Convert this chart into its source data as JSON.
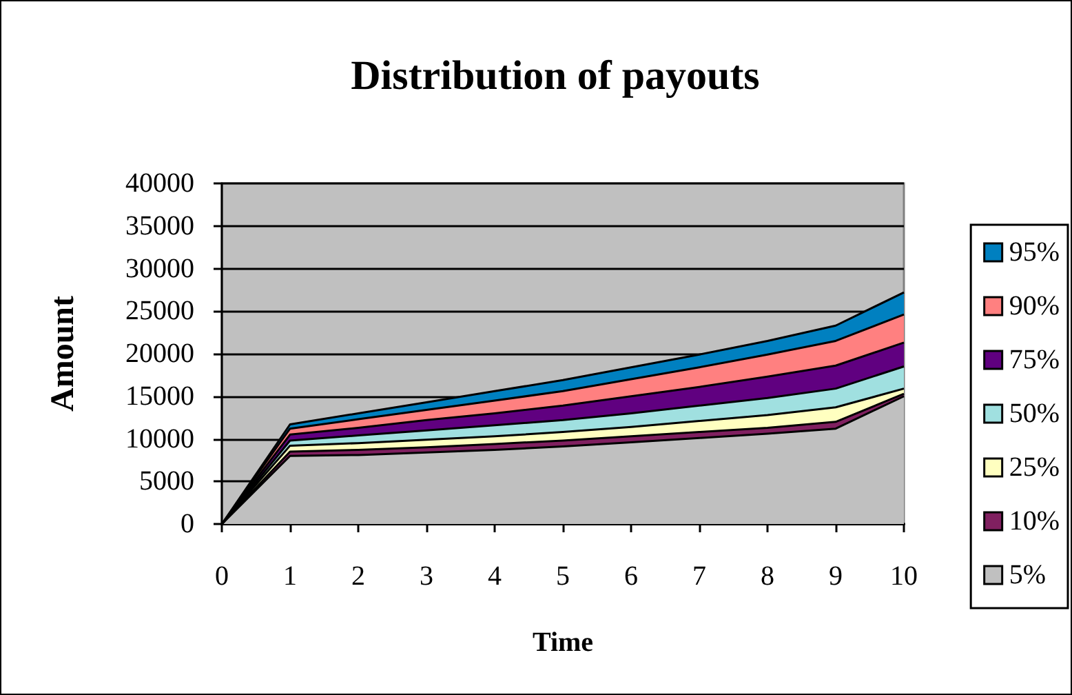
{
  "chart_data": {
    "type": "area",
    "title": "Distribution of payouts",
    "xlabel": "Time",
    "ylabel": "Amount",
    "categories": [
      "0",
      "1",
      "2",
      "3",
      "4",
      "5",
      "6",
      "7",
      "8",
      "9",
      "10"
    ],
    "stacked": true,
    "ylim": [
      0,
      40000
    ],
    "yticks": [
      0,
      5000,
      10000,
      15000,
      20000,
      25000,
      30000,
      35000,
      40000
    ],
    "grid": "y",
    "legend": "right",
    "marker": "none",
    "series": [
      {
        "name": "5%",
        "color": "#c0c0c0",
        "values": [
          0,
          8000,
          8100,
          8400,
          8700,
          9100,
          9600,
          10100,
          10600,
          11200,
          15000
        ]
      },
      {
        "name": "10%",
        "color": "#802060",
        "values": [
          0,
          500,
          600,
          600,
          700,
          700,
          700,
          700,
          700,
          800,
          300
        ]
      },
      {
        "name": "25%",
        "color": "#ffffc0",
        "values": [
          0,
          700,
          800,
          900,
          900,
          1000,
          1100,
          1300,
          1500,
          1700,
          600
        ]
      },
      {
        "name": "50%",
        "color": "#a0e0e0",
        "values": [
          0,
          600,
          900,
          1100,
          1300,
          1400,
          1600,
          1800,
          2000,
          2200,
          2600
        ]
      },
      {
        "name": "75%",
        "color": "#600080",
        "values": [
          0,
          700,
          900,
          1200,
          1400,
          1700,
          2000,
          2200,
          2500,
          2700,
          2800
        ]
      },
      {
        "name": "90%",
        "color": "#ff8080",
        "values": [
          0,
          700,
          1000,
          1200,
          1500,
          1700,
          2000,
          2300,
          2600,
          2900,
          3300
        ]
      },
      {
        "name": "95%",
        "color": "#0080c0",
        "values": [
          0,
          500,
          700,
          900,
          1100,
          1300,
          1400,
          1500,
          1600,
          1800,
          2600
        ]
      }
    ]
  }
}
